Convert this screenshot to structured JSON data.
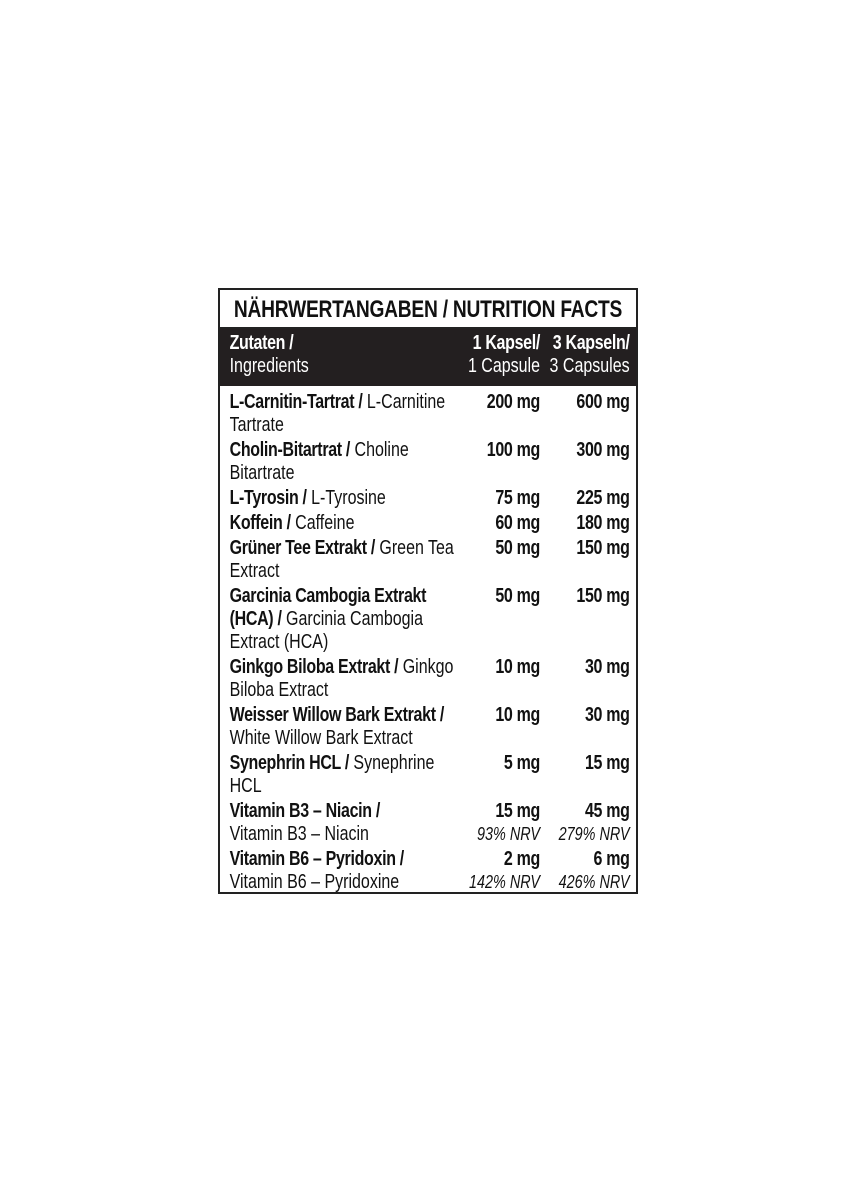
{
  "header": {
    "title": "NÄHRWERTANGABEN / NUTRITION FACTS"
  },
  "table": {
    "columns": [
      {
        "bold": "Zutaten /",
        "light": "Ingredients"
      },
      {
        "bold": "1 Kapsel/",
        "light": "1 Capsule"
      },
      {
        "bold": "3 Kapseln/",
        "light": "3 Capsules"
      }
    ],
    "rows": [
      {
        "name_de": "L-Carnitin-Tartrat /",
        "name_en": "L-Carnitine Tartrate",
        "amount_1": "200 mg",
        "amount_3": "600 mg"
      },
      {
        "name_de": "Cholin-Bitartrat /",
        "name_en": "Choline Bitartrate",
        "amount_1": "100 mg",
        "amount_3": "300 mg"
      },
      {
        "name_de": "L-Tyrosin /",
        "name_en": "L-Tyrosine",
        "amount_1": "75 mg",
        "amount_3": "225 mg"
      },
      {
        "name_de": "Koffein /",
        "name_en": "Caffeine",
        "amount_1": "60 mg",
        "amount_3": "180 mg"
      },
      {
        "name_de": "Grüner Tee Extrakt /",
        "name_en": "Green Tea Extract",
        "amount_1": "50 mg",
        "amount_3": "150 mg"
      },
      {
        "name_de": "Garcinia Cambogia Extrakt (HCA) /",
        "name_en": "Garcinia Cambogia Extract (HCA)",
        "amount_1": "50 mg",
        "amount_3": "150 mg"
      },
      {
        "name_de": "Ginkgo Biloba Extrakt /",
        "name_en": "Ginkgo Biloba Extract",
        "amount_1": "10 mg",
        "amount_3": "30 mg"
      },
      {
        "name_de": "Weisser Willow Bark Extrakt /",
        "name_en": "White Willow Bark Extract",
        "amount_1": "10 mg",
        "amount_3": "30 mg"
      },
      {
        "name_de": "Synephrin HCL /",
        "name_en": "Synephrine HCL",
        "amount_1": "5 mg",
        "amount_3": "15 mg"
      },
      {
        "name_de": "Vitamin B3 – Niacin /",
        "name_en": "Vitamin B3 – Niacin",
        "amount_1": "15 mg",
        "amount_3": "45 mg",
        "nrv_1": "93% NRV",
        "nrv_3": "279% NRV"
      },
      {
        "name_de": "Vitamin B6 – Pyridoxin /",
        "name_en": "Vitamin B6 – Pyridoxine",
        "amount_1": "2 mg",
        "amount_3": "6 mg",
        "nrv_1": "142% NRV",
        "nrv_3": "426% NRV"
      }
    ]
  }
}
